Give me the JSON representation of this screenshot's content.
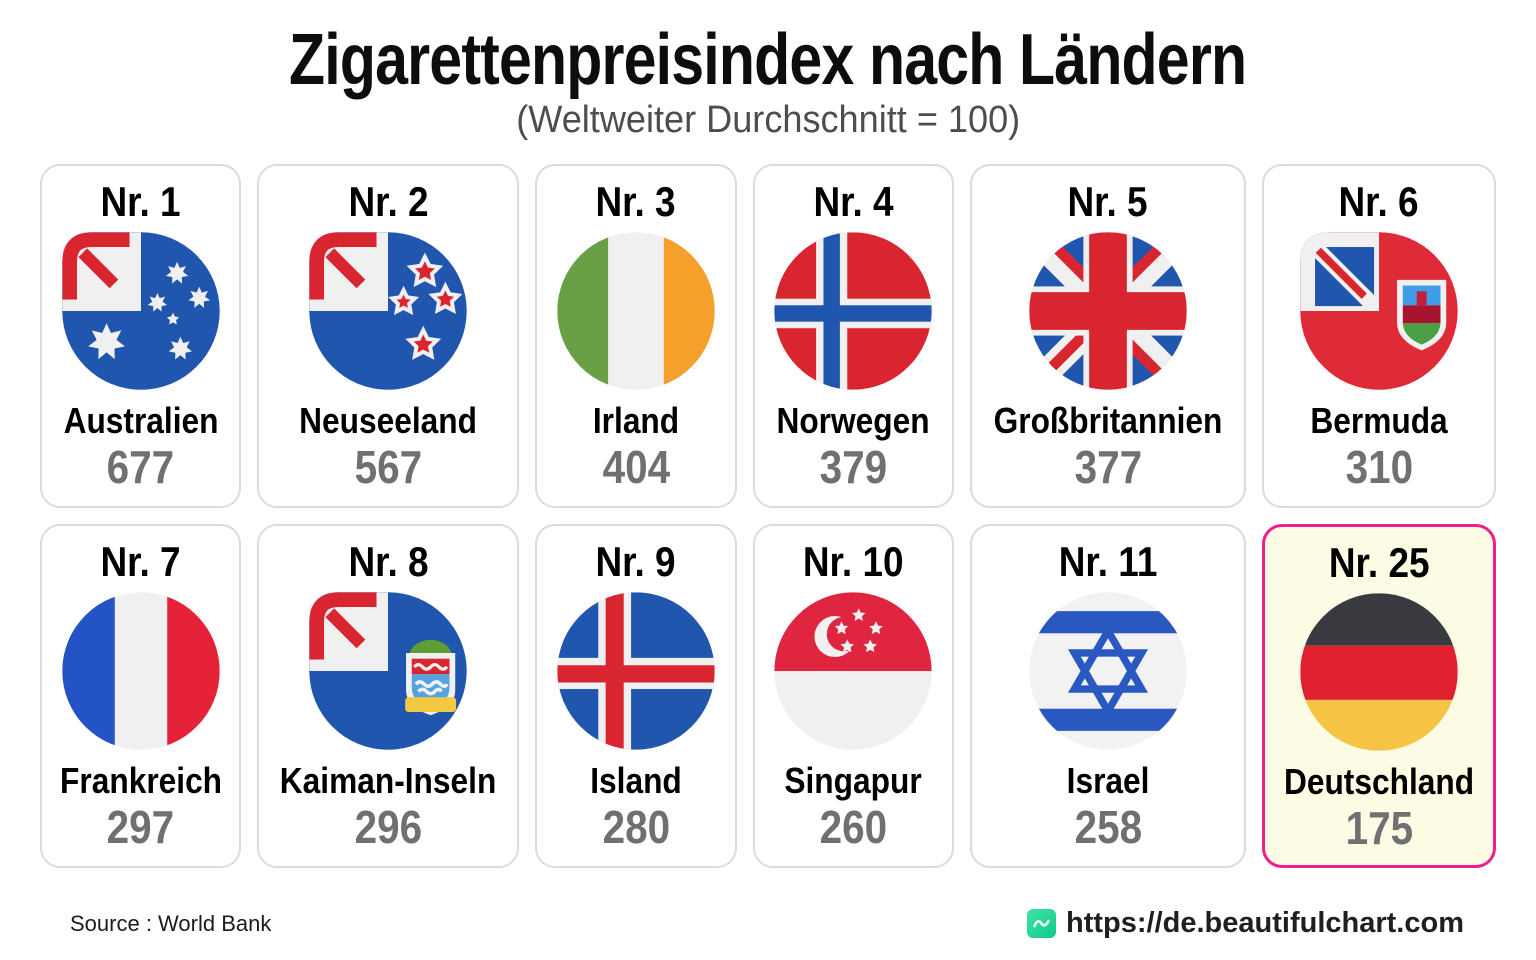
{
  "header": {
    "title": "Zigarettenpreisindex nach Ländern",
    "subtitle": "(Weltweiter Durchschnitt = 100)"
  },
  "chart_data": {
    "type": "pictogram-ranking",
    "title": "Zigarettenpreisindex nach Ländern",
    "subtitle": "(Weltweiter Durchschnitt = 100)",
    "baseline": "Weltweiter Durchschnitt = 100",
    "source": "World Bank",
    "items": [
      {
        "rank_label": "Nr. 1",
        "country": "Australien",
        "value": 677,
        "flag": "australia",
        "highlighted": false
      },
      {
        "rank_label": "Nr. 2",
        "country": "Neuseeland",
        "value": 567,
        "flag": "new-zealand",
        "highlighted": false
      },
      {
        "rank_label": "Nr. 3",
        "country": "Irland",
        "value": 404,
        "flag": "ireland",
        "highlighted": false
      },
      {
        "rank_label": "Nr. 4",
        "country": "Norwegen",
        "value": 379,
        "flag": "norway",
        "highlighted": false
      },
      {
        "rank_label": "Nr. 5",
        "country": "Großbritannien",
        "value": 377,
        "flag": "united-kingdom",
        "highlighted": false
      },
      {
        "rank_label": "Nr. 6",
        "country": "Bermuda",
        "value": 310,
        "flag": "bermuda",
        "highlighted": false
      },
      {
        "rank_label": "Nr. 7",
        "country": "Frankreich",
        "value": 297,
        "flag": "france",
        "highlighted": false
      },
      {
        "rank_label": "Nr. 8",
        "country": "Kaiman-Inseln",
        "value": 296,
        "flag": "cayman-islands",
        "highlighted": false
      },
      {
        "rank_label": "Nr. 9",
        "country": "Island",
        "value": 280,
        "flag": "iceland",
        "highlighted": false
      },
      {
        "rank_label": "Nr. 10",
        "country": "Singapur",
        "value": 260,
        "flag": "singapore",
        "highlighted": false
      },
      {
        "rank_label": "Nr. 11",
        "country": "Israel",
        "value": 258,
        "flag": "israel",
        "highlighted": false
      },
      {
        "rank_label": "Nr. 25",
        "country": "Deutschland",
        "value": 175,
        "flag": "germany",
        "highlighted": true
      }
    ]
  },
  "footer": {
    "source": "Source : World Bank",
    "url": "https://de.beautifulchart.com"
  },
  "colors": {
    "highlight_border": "#ef1d8d",
    "highlight_bg": "#fcfce4",
    "brand_green_start": "#3fe5a0",
    "brand_green_end": "#10c98f",
    "value_gray": "#707070"
  }
}
